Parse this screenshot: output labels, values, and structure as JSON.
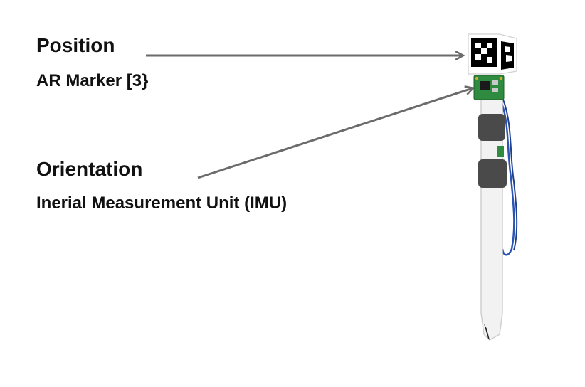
{
  "annotations": [
    {
      "title": "Position",
      "subtitle": "AR Marker [3}"
    },
    {
      "title": "Orientation",
      "subtitle": "Inerial Measurement Unit (IMU)"
    }
  ],
  "colors": {
    "text": "#111111",
    "arrow": "#6b6b6b",
    "pen_body": "#f2f2f2",
    "strap": "#4a4a4a",
    "pcb": "#2e8b3f",
    "wire": "#2a55b5",
    "marker": "#000000"
  },
  "icons": [
    "ar-marker-cube-icon",
    "imu-board-icon",
    "stylus-pen-icon"
  ]
}
